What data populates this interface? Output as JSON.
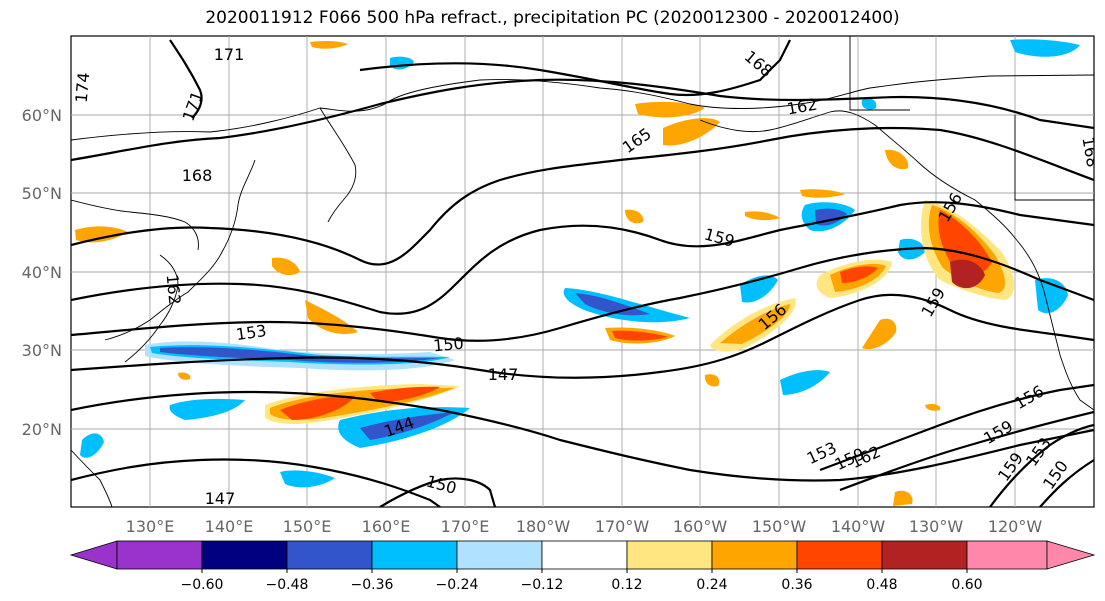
{
  "title": "2020011912 F066 500 hPa refract., precipitation PC (2020012300 - 2020012400)",
  "map": {
    "lat_labels": [
      "60°N",
      "50°N",
      "40°N",
      "30°N",
      "20°N"
    ],
    "lon_labels": [
      "130°E",
      "140°E",
      "150°E",
      "160°E",
      "170°E",
      "180°W",
      "170°W",
      "160°W",
      "150°W",
      "140°W",
      "130°W",
      "120°W"
    ],
    "contour_labels": [
      "171",
      "171",
      "174",
      "168",
      "168",
      "165",
      "162",
      "159",
      "168",
      "156",
      "159",
      "153",
      "150",
      "147",
      "144",
      "156",
      "153",
      "159",
      "162",
      "156",
      "159",
      "153",
      "150",
      "147",
      "150",
      "159",
      "162"
    ]
  },
  "colorbar": {
    "ticks": [
      "−0.60",
      "−0.48",
      "−0.36",
      "−0.24",
      "−0.12",
      "0.12",
      "0.24",
      "0.36",
      "0.48",
      "0.60"
    ],
    "colors": [
      "#9933cc",
      "#000080",
      "#3355cc",
      "#00bfff",
      "#b0e2ff",
      "#ffffff",
      "#ffe680",
      "#ffa500",
      "#ff4500",
      "#b22222",
      "#ff88aa"
    ]
  }
}
